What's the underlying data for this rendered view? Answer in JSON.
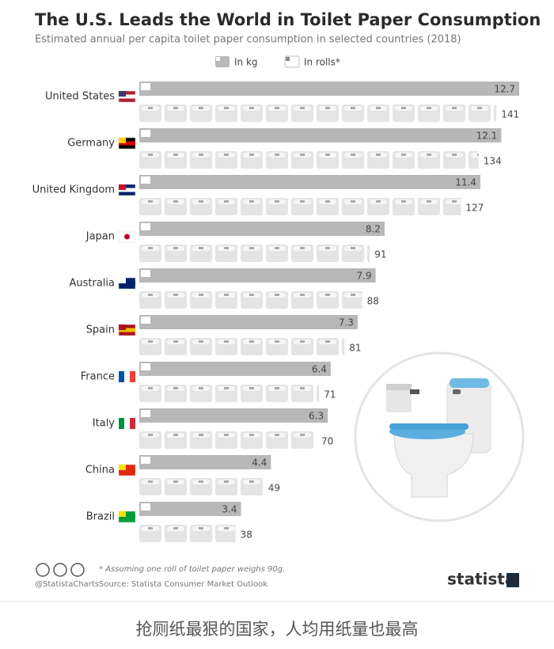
{
  "chart_data": {
    "type": "bar",
    "title": "The U.S. Leads the World in Toilet Paper Consumption",
    "subtitle": "Estimated annual per capita toilet paper consumption in selected countries (2018)",
    "categories": [
      "United States",
      "Germany",
      "United Kingdom",
      "Japan",
      "Australia",
      "Spain",
      "France",
      "Italy",
      "China",
      "Brazil"
    ],
    "series": [
      {
        "name": "In kg",
        "color": "#b8b8b8",
        "values": [
          12.7,
          12.1,
          11.4,
          8.2,
          7.9,
          7.3,
          6.4,
          6.3,
          4.4,
          3.4
        ]
      },
      {
        "name": "In rolls*",
        "color": "#e4e4e4",
        "values": [
          141,
          134,
          127,
          91,
          88,
          81,
          71,
          70,
          49,
          38
        ]
      }
    ],
    "footnote": "* Assuming one roll of toilet paper weighs 90g.",
    "source": "Source: Statista Consumer Market Outlook",
    "handle": "@StatistaCharts",
    "brand": "statista"
  },
  "caption": "抢厕纸最狠的国家，人均用纸量也最高"
}
